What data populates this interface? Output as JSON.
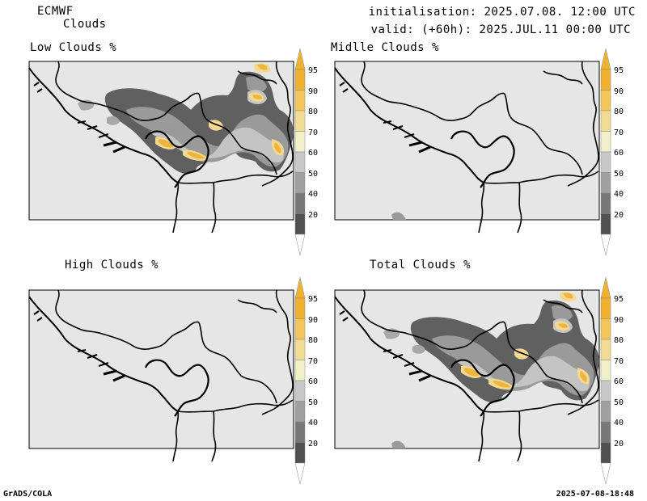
{
  "header": {
    "model": "ECMWF",
    "product": "Clouds",
    "init": "initialisation: 2025.07.08. 12:00 UTC",
    "valid": "valid: (+60h): 2025.JUL.11 00:00 UTC"
  },
  "panels": [
    {
      "title": "Low Clouds %",
      "has_clouds": true
    },
    {
      "title": "Midlle Clouds %",
      "has_clouds": false
    },
    {
      "title": "High Clouds %",
      "has_clouds": false
    },
    {
      "title": "Total Clouds %",
      "has_clouds": true
    }
  ],
  "colorbar": {
    "labels": [
      "95",
      "90",
      "80",
      "70",
      "60",
      "50",
      "40",
      "20"
    ],
    "colors": [
      "#f0b030",
      "#f3c65a",
      "#f2dc94",
      "#f2f0c8",
      "#c8c8c8",
      "#a0a0a0",
      "#787878",
      "#505050"
    ]
  },
  "colors": {
    "map_bg": "#e6e6e6",
    "cloud_dark": "#606060",
    "cloud_mid": "#9a9a9a",
    "cloud_light": "#c4c4c4",
    "cloud_yellow": "#f2d890",
    "cloud_orange": "#eeb43c"
  },
  "footer": {
    "left": "GrADS/COLA",
    "right": "2025-07-08-18:48"
  }
}
